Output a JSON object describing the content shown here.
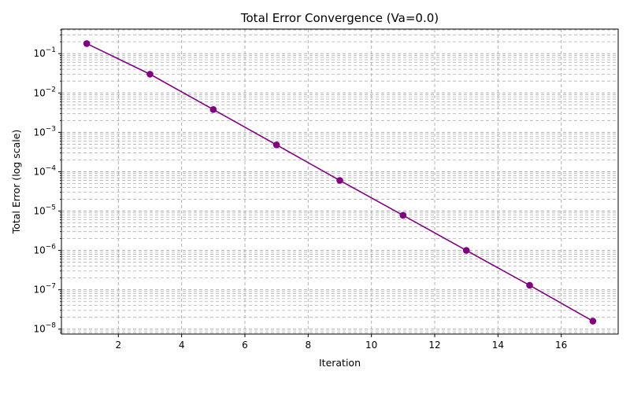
{
  "chart_data": {
    "type": "line",
    "title": "Total Error Convergence (Va=0.0)",
    "xlabel": "Iteration",
    "ylabel": "Total Error (log scale)",
    "y_scale": "log",
    "grid": true,
    "grid_style": "dashed",
    "xlim": [
      0.2,
      17.8
    ],
    "ylim": [
      7.5e-09,
      0.42
    ],
    "x_ticks": [
      2,
      4,
      6,
      8,
      10,
      12,
      14,
      16
    ],
    "y_ticks": [
      {
        "value": 0.1,
        "base": "10",
        "exp": "−1"
      },
      {
        "value": 0.01,
        "base": "10",
        "exp": "−2"
      },
      {
        "value": 0.001,
        "base": "10",
        "exp": "−3"
      },
      {
        "value": 0.0001,
        "base": "10",
        "exp": "−4"
      },
      {
        "value": 1e-05,
        "base": "10",
        "exp": "−5"
      },
      {
        "value": 1e-06,
        "base": "10",
        "exp": "−6"
      },
      {
        "value": 1e-07,
        "base": "10",
        "exp": "−7"
      },
      {
        "value": 1e-08,
        "base": "10",
        "exp": "−8"
      }
    ],
    "series": [
      {
        "color": "#800080",
        "marker": "circle",
        "x": [
          1,
          3,
          5,
          7,
          9,
          11,
          13,
          15,
          17
        ],
        "y": [
          0.18,
          0.03,
          0.0038,
          0.00048,
          6e-05,
          7.8e-06,
          1e-06,
          1.3e-07,
          1.6e-08
        ]
      }
    ]
  }
}
